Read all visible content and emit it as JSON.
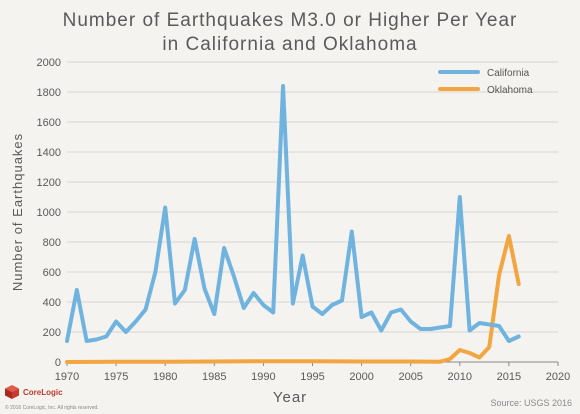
{
  "chart_data": {
    "type": "line",
    "title_line1": "Number of Earthquakes M3.0 or Higher Per Year",
    "title_line2": "in California and Oklahoma",
    "xlabel": "Year",
    "ylabel": "Number of Earthquakes",
    "xlim": [
      1970,
      2020
    ],
    "ylim": [
      0,
      2000
    ],
    "xticks": [
      1970,
      1975,
      1980,
      1985,
      1990,
      1995,
      2000,
      2005,
      2010,
      2015,
      2020
    ],
    "yticks": [
      0,
      200,
      400,
      600,
      800,
      1000,
      1200,
      1400,
      1600,
      1800,
      2000
    ],
    "grid": "horizontal",
    "legend_position": "top-right",
    "series": [
      {
        "name": "California",
        "color": "#6fb3de",
        "x": [
          1970,
          1971,
          1972,
          1973,
          1974,
          1975,
          1976,
          1977,
          1978,
          1979,
          1980,
          1981,
          1982,
          1983,
          1984,
          1985,
          1986,
          1987,
          1988,
          1989,
          1990,
          1991,
          1992,
          1993,
          1994,
          1995,
          1996,
          1997,
          1998,
          1999,
          2000,
          2001,
          2002,
          2003,
          2004,
          2005,
          2006,
          2007,
          2008,
          2009,
          2010,
          2011,
          2012,
          2013,
          2014,
          2015,
          2016
        ],
        "values": [
          140,
          480,
          140,
          150,
          170,
          270,
          200,
          270,
          350,
          600,
          1030,
          390,
          480,
          820,
          490,
          320,
          760,
          570,
          360,
          460,
          380,
          330,
          1840,
          390,
          710,
          370,
          320,
          380,
          410,
          870,
          300,
          330,
          210,
          330,
          350,
          270,
          220,
          220,
          230,
          240,
          1100,
          210,
          260,
          250,
          240,
          140,
          170
        ]
      },
      {
        "name": "Oklahoma",
        "color": "#f2a541",
        "x": [
          1970,
          1975,
          1980,
          1985,
          1990,
          1995,
          2000,
          2005,
          2008,
          2009,
          2010,
          2011,
          2012,
          2013,
          2014,
          2015,
          2016
        ],
        "values": [
          0,
          2,
          2,
          3,
          5,
          5,
          3,
          3,
          2,
          20,
          80,
          60,
          30,
          100,
          580,
          840,
          520
        ]
      }
    ]
  },
  "branding": {
    "logo_text": "CoreLogic",
    "copyright": "© 2016 CoreLogic, Inc. All rights reserved.",
    "source": "Source: USGS 2016"
  }
}
